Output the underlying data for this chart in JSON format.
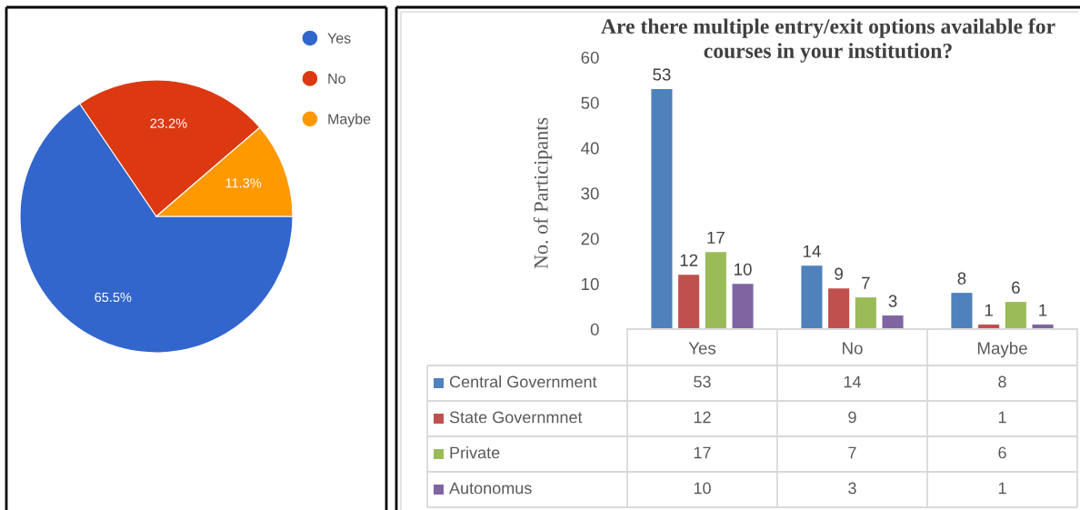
{
  "chart_data": [
    {
      "type": "pie",
      "categories": [
        "Yes",
        "No",
        "Maybe"
      ],
      "values": [
        65.5,
        23.2,
        11.3
      ],
      "colors": [
        "#3366cc",
        "#dc3912",
        "#ff9900"
      ],
      "value_labels": [
        "65.5%",
        "23.2%",
        "11.3%"
      ],
      "legend": "top right"
    },
    {
      "type": "bar",
      "title": "Are there multiple entry/exit options available for courses in your institution?",
      "ylabel": "No. of Participants",
      "categories": [
        "Yes",
        "No",
        "Maybe"
      ],
      "series": [
        {
          "name": "Central Government",
          "color": "#4f81bd",
          "values": [
            53,
            14,
            8
          ]
        },
        {
          "name": "State Governmnet",
          "color": "#c0504d",
          "values": [
            12,
            9,
            1
          ]
        },
        {
          "name": "Private",
          "color": "#9bbb59",
          "values": [
            17,
            7,
            6
          ]
        },
        {
          "name": "Autonomus",
          "color": "#8064a2",
          "values": [
            10,
            3,
            1
          ]
        }
      ],
      "ylim": [
        0,
        60
      ],
      "yticks": [
        0,
        10,
        20,
        30,
        40,
        50,
        60
      ],
      "data_labels": true,
      "legend": "bottom",
      "annotations": [
        "53",
        "14",
        "8",
        "12",
        "9",
        "1",
        "17",
        "7",
        "6",
        "10",
        "3",
        "1"
      ]
    }
  ]
}
